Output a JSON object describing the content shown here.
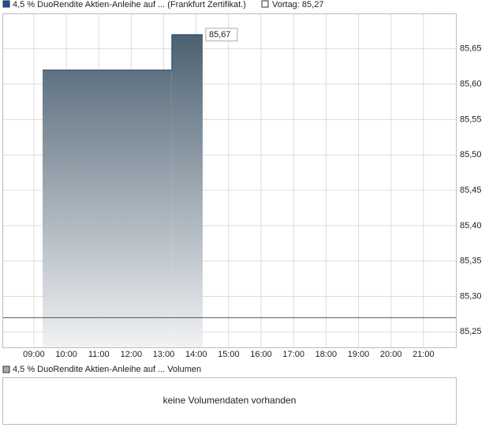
{
  "chart_data": {
    "type": "step-area",
    "legend": {
      "name": "4,5 % DuoRendite Aktien-Anleihe auf ... (Frankfurt Zertifikat.)",
      "color": "#1f4e9c"
    },
    "previous_close": {
      "value": 85.27,
      "label": "Vortag: 85,27",
      "color": "#555555"
    },
    "x": [
      9.27,
      13.25,
      14.2
    ],
    "values": [
      85.62,
      85.67,
      85.67
    ],
    "value_labels": [
      null,
      null,
      "85,67"
    ],
    "xlim": [
      8.03,
      22.0
    ],
    "xticks": [
      {
        "value": 9,
        "label": "09:00"
      },
      {
        "value": 10,
        "label": "10:00"
      },
      {
        "value": 11,
        "label": "11:00"
      },
      {
        "value": 12,
        "label": "12:00"
      },
      {
        "value": 13,
        "label": "13:00"
      },
      {
        "value": 14,
        "label": "14:00"
      },
      {
        "value": 15,
        "label": "15:00"
      },
      {
        "value": 16,
        "label": "16:00"
      },
      {
        "value": 17,
        "label": "17:00"
      },
      {
        "value": 18,
        "label": "18:00"
      },
      {
        "value": 19,
        "label": "19:00"
      },
      {
        "value": 20,
        "label": "20:00"
      },
      {
        "value": 21,
        "label": "21:00"
      }
    ],
    "ylim": [
      85.228,
      85.7
    ],
    "yticks": [
      {
        "value": 85.25,
        "label": "85,25"
      },
      {
        "value": 85.3,
        "label": "85,30"
      },
      {
        "value": 85.35,
        "label": "85,35"
      },
      {
        "value": 85.4,
        "label": "85,40"
      },
      {
        "value": 85.45,
        "label": "85,45"
      },
      {
        "value": 85.5,
        "label": "85,50"
      },
      {
        "value": 85.55,
        "label": "85,55"
      },
      {
        "value": 85.6,
        "label": "85,60"
      },
      {
        "value": 85.65,
        "label": "85,65"
      }
    ],
    "grid": true,
    "volume": {
      "legend": "4,5 % DuoRendite Aktien-Anleihe auf ... Volumen",
      "message": "keine Volumendaten vorhanden"
    }
  }
}
